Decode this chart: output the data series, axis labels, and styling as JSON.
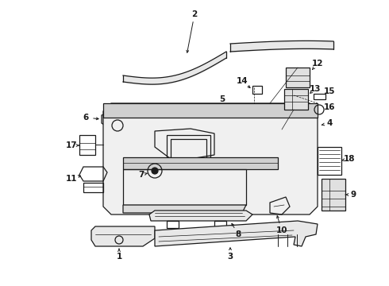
{
  "bg_color": "#ffffff",
  "line_color": "#1a1a1a",
  "fig_width": 4.9,
  "fig_height": 3.6,
  "dpi": 100,
  "label_fontsize": 7.5,
  "line_width": 0.9
}
